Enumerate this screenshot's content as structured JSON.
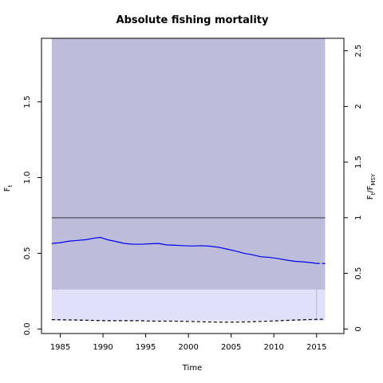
{
  "chart_data": {
    "type": "line",
    "title": "Absolute fishing mortality",
    "xlabel": "Time",
    "ylabel_left": {
      "main": "F",
      "sub": "t"
    },
    "ylabel_right": {
      "main": "F",
      "sub1": "t",
      "sep": "/F",
      "sub2": "MSY"
    },
    "xlim": [
      1982.8,
      2018.2
    ],
    "ylim_left": [
      -0.03,
      1.92
    ],
    "right_axis_factor": 0.735,
    "x_ticks": [
      1985,
      1990,
      1995,
      2000,
      2005,
      2010,
      2015
    ],
    "y_ticks_left": [
      0.0,
      0.5,
      1.0,
      1.5
    ],
    "y_ticks_right": [
      0,
      0.5,
      1,
      1.5,
      2,
      2.5
    ],
    "y_tick_labels_left": [
      "0.0",
      "0.5",
      "1.0",
      "1.5"
    ],
    "y_tick_labels_right": [
      "0",
      "0.5",
      "1",
      "1.5",
      "2",
      "2.5"
    ],
    "bands": [
      {
        "name": "outer",
        "x_range": [
          1984,
          2016
        ],
        "y_range": [
          0.26,
          1.92
        ],
        "color": "#bdbddb"
      },
      {
        "name": "inner",
        "x_range": [
          1984,
          2016
        ],
        "y_range": [
          0.055,
          0.26
        ],
        "color": "#e0e0fb"
      }
    ],
    "fmsy_line": {
      "y": 0.735,
      "color": "#606070"
    },
    "series": [
      {
        "style": "solid",
        "color": "#0000ee",
        "x": [
          1984,
          1985,
          1986,
          1987,
          1988,
          1989,
          1989.7,
          1990.5,
          1991.5,
          1992.5,
          1993.5,
          1994.5,
          1995.5,
          1996.5,
          1997.5,
          1998.5,
          1999.5,
          2000.5,
          2001.5,
          2002.5,
          2003.5,
          2004.5,
          2005.5,
          2006.5,
          2007.5,
          2008.5,
          2009.5,
          2010.5,
          2011.5,
          2012.5,
          2013.5,
          2014.5,
          2015
        ],
        "y": [
          0.565,
          0.57,
          0.58,
          0.585,
          0.59,
          0.6,
          0.605,
          0.59,
          0.578,
          0.565,
          0.56,
          0.56,
          0.563,
          0.565,
          0.555,
          0.553,
          0.55,
          0.548,
          0.55,
          0.547,
          0.54,
          0.528,
          0.515,
          0.5,
          0.49,
          0.477,
          0.473,
          0.465,
          0.455,
          0.447,
          0.443,
          0.437,
          0.433
        ]
      },
      {
        "style": "dashed",
        "color": "#0000ee",
        "x": [
          2015,
          2016
        ],
        "y": [
          0.433,
          0.432
        ]
      },
      {
        "style": "dashed",
        "color": "#000000",
        "x": [
          1984,
          1986,
          1988,
          1990,
          1992,
          1994,
          1996,
          1998,
          2000,
          2002,
          2004,
          2006,
          2008,
          2010,
          2012,
          2014,
          2016
        ],
        "y": [
          0.062,
          0.06,
          0.058,
          0.055,
          0.055,
          0.055,
          0.052,
          0.052,
          0.05,
          0.047,
          0.045,
          0.046,
          0.049,
          0.053,
          0.058,
          0.062,
          0.065
        ]
      }
    ],
    "marker_line": {
      "x": 2015,
      "y_range": [
        0.055,
        0.26
      ],
      "color": "#b8b8cc"
    }
  }
}
